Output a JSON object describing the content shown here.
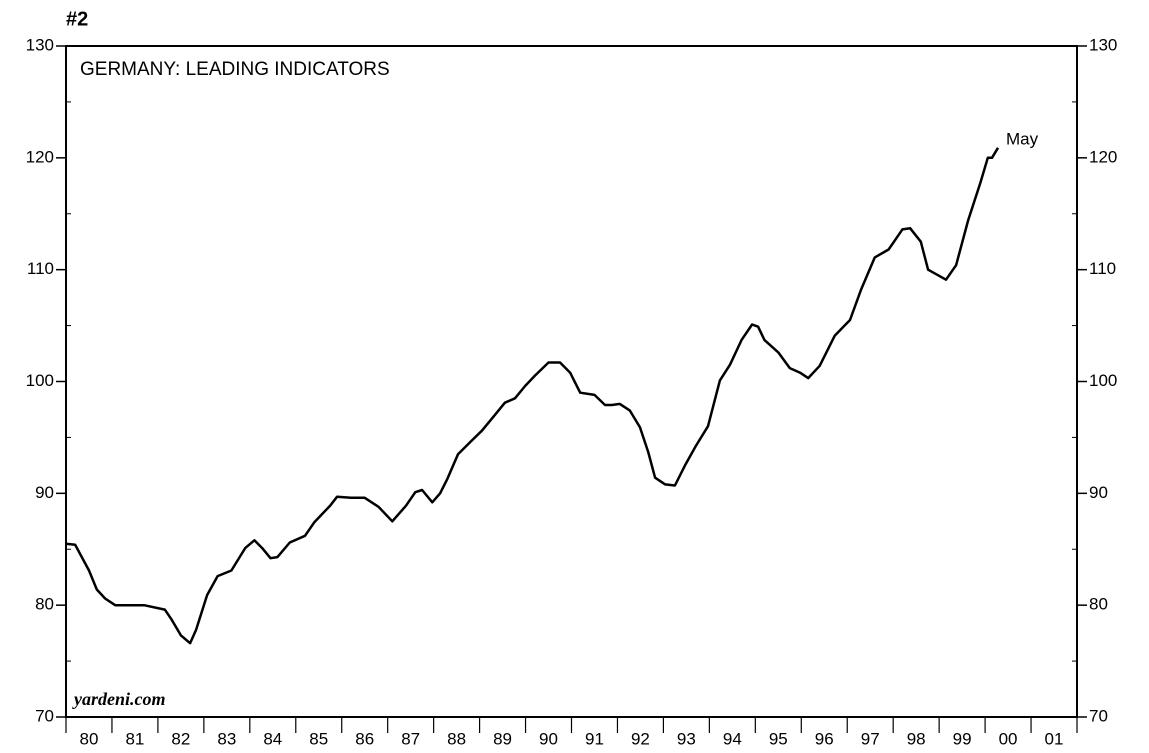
{
  "chart_data": {
    "type": "line",
    "chart_number": "#2",
    "title": "GERMANY: LEADING INDICATORS",
    "source": "yardeni.com",
    "annotation": "May",
    "categories": [
      "80",
      "81",
      "82",
      "83",
      "84",
      "85",
      "86",
      "87",
      "88",
      "89",
      "90",
      "91",
      "92",
      "93",
      "94",
      "95",
      "96",
      "97",
      "98",
      "99",
      "00",
      "01"
    ],
    "xlim": [
      1980,
      2002
    ],
    "xticks": [
      1980,
      1981,
      1982,
      1983,
      1984,
      1985,
      1986,
      1987,
      1988,
      1989,
      1990,
      1991,
      1992,
      1993,
      1994,
      1995,
      1996,
      1997,
      1998,
      1999,
      2000,
      2001,
      2002
    ],
    "ylim": [
      70,
      130
    ],
    "yticks": [
      70,
      80,
      90,
      100,
      110,
      120,
      130
    ],
    "series": [
      {
        "color": "#000000",
        "x": [
          1980.0,
          1980.2,
          1980.5,
          1980.67,
          1980.85,
          1981.07,
          1981.3,
          1981.7,
          1982.15,
          1982.3,
          1982.5,
          1982.7,
          1982.83,
          1983.07,
          1983.3,
          1983.6,
          1983.9,
          1984.1,
          1984.27,
          1984.45,
          1984.6,
          1984.87,
          1985.2,
          1985.4,
          1985.75,
          1985.9,
          1986.2,
          1986.5,
          1986.8,
          1987.1,
          1987.4,
          1987.6,
          1987.75,
          1987.97,
          1988.14,
          1988.3,
          1988.53,
          1988.8,
          1989.05,
          1989.33,
          1989.55,
          1989.77,
          1989.99,
          1990.2,
          1990.5,
          1990.75,
          1990.97,
          1991.19,
          1991.5,
          1991.73,
          1991.88,
          1992.05,
          1992.27,
          1992.49,
          1992.67,
          1992.82,
          1993.04,
          1993.25,
          1993.47,
          1993.7,
          1993.97,
          1994.23,
          1994.45,
          1994.7,
          1994.93,
          1995.06,
          1995.2,
          1995.5,
          1995.75,
          1995.97,
          1996.15,
          1996.4,
          1996.73,
          1997.06,
          1997.3,
          1997.6,
          1997.9,
          1998.2,
          1998.37,
          1998.6,
          1998.76,
          1998.98,
          1999.15,
          1999.37,
          1999.63,
          1999.9,
          2000.06,
          2000.15,
          2000.28
        ],
        "values": [
          85.5,
          85.4,
          83.1,
          81.4,
          80.6,
          80.0,
          80.0,
          80.0,
          79.6,
          78.7,
          77.3,
          76.6,
          77.8,
          80.9,
          82.6,
          83.1,
          85.1,
          85.8,
          85.1,
          84.2,
          84.3,
          85.6,
          86.2,
          87.4,
          88.9,
          89.7,
          89.6,
          89.6,
          88.8,
          87.5,
          88.9,
          90.1,
          90.3,
          89.2,
          90.0,
          91.3,
          93.5,
          94.6,
          95.6,
          97.0,
          98.1,
          98.5,
          99.6,
          100.5,
          101.7,
          101.7,
          100.8,
          99.0,
          98.8,
          97.9,
          97.9,
          98.0,
          97.4,
          95.9,
          93.7,
          91.4,
          90.8,
          90.7,
          92.5,
          94.2,
          96.0,
          100.1,
          101.5,
          103.7,
          105.1,
          104.9,
          103.7,
          102.6,
          101.2,
          100.8,
          100.3,
          101.4,
          104.1,
          105.5,
          108.2,
          111.1,
          111.8,
          113.6,
          113.7,
          112.5,
          110.0,
          109.5,
          109.1,
          110.4,
          114.4,
          117.8,
          120.0,
          120.0,
          120.9
        ]
      }
    ]
  }
}
